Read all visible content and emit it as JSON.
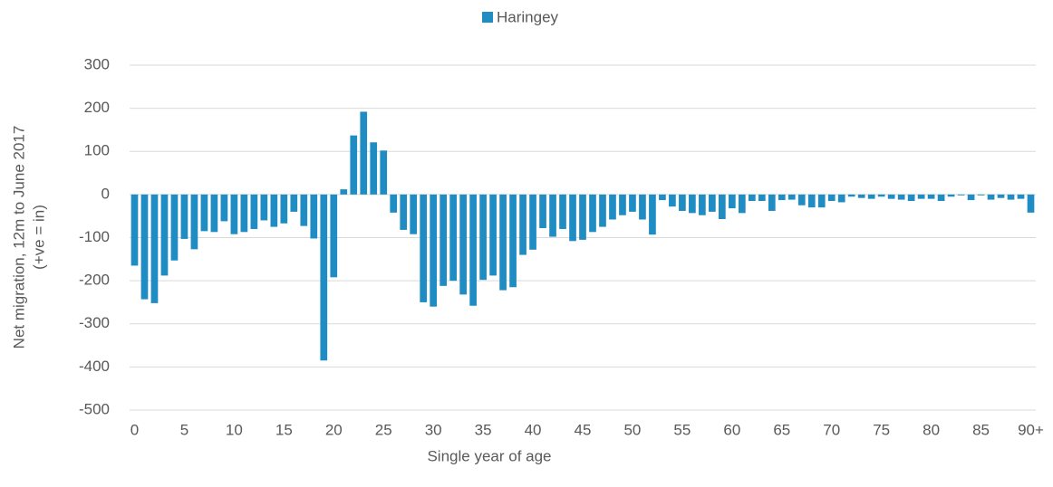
{
  "chart_data": {
    "type": "bar",
    "series": [
      {
        "name": "Haringey",
        "color": "#1f8dc3",
        "values": [
          -165,
          -243,
          -252,
          -188,
          -153,
          -103,
          -127,
          -85,
          -87,
          -62,
          -92,
          -87,
          -80,
          -60,
          -75,
          -67,
          -40,
          -73,
          -102,
          -385,
          -192,
          12,
          137,
          192,
          121,
          102,
          -42,
          -82,
          -92,
          -250,
          -260,
          -212,
          -200,
          -232,
          -258,
          -198,
          -188,
          -222,
          -215,
          -140,
          -128,
          -78,
          -98,
          -80,
          -108,
          -105,
          -87,
          -75,
          -58,
          -48,
          -40,
          -58,
          -93,
          -13,
          -28,
          -38,
          -43,
          -48,
          -40,
          -57,
          -32,
          -43,
          -15,
          -15,
          -38,
          -13,
          -12,
          -25,
          -30,
          -30,
          -15,
          -18,
          -5,
          -8,
          -10,
          -5,
          -10,
          -12,
          -15,
          -10,
          -10,
          -15,
          -5,
          -2,
          -13,
          -2,
          -12,
          -8,
          -12,
          -10,
          -42
        ]
      }
    ],
    "categories": [
      "0",
      null,
      null,
      null,
      null,
      "5",
      null,
      null,
      null,
      null,
      "10",
      null,
      null,
      null,
      null,
      "15",
      null,
      null,
      null,
      null,
      "20",
      null,
      null,
      null,
      null,
      "25",
      null,
      null,
      null,
      null,
      "30",
      null,
      null,
      null,
      null,
      "35",
      null,
      null,
      null,
      null,
      "40",
      null,
      null,
      null,
      null,
      "45",
      null,
      null,
      null,
      null,
      "50",
      null,
      null,
      null,
      null,
      "55",
      null,
      null,
      null,
      null,
      "60",
      null,
      null,
      null,
      null,
      "65",
      null,
      null,
      null,
      null,
      "70",
      null,
      null,
      null,
      null,
      "75",
      null,
      null,
      null,
      null,
      "80",
      null,
      null,
      null,
      null,
      "85",
      null,
      null,
      null,
      null,
      "90+"
    ],
    "xlabel": "Single year of age",
    "ylabel": [
      "Net migration, 12m to June 2017",
      "(+ve = in)"
    ],
    "ylim": [
      -500,
      300
    ],
    "yticks": [
      -500,
      -400,
      -300,
      -200,
      -100,
      0,
      100,
      200,
      300
    ],
    "grid": true,
    "legend": "top"
  }
}
